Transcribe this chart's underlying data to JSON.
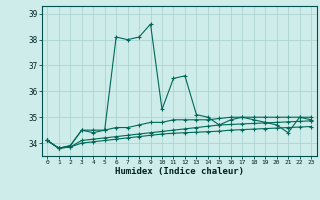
{
  "title": "",
  "xlabel": "Humidex (Indice chaleur)",
  "ylabel": "",
  "xlim": [
    -0.5,
    23.5
  ],
  "ylim": [
    33.5,
    39.3
  ],
  "yticks": [
    34,
    35,
    36,
    37,
    38,
    39
  ],
  "xticks": [
    0,
    1,
    2,
    3,
    4,
    5,
    6,
    7,
    8,
    9,
    10,
    11,
    12,
    13,
    14,
    15,
    16,
    17,
    18,
    19,
    20,
    21,
    22,
    23
  ],
  "bg_color": "#ceecea",
  "grid_color": "#aed4d0",
  "line_color": "#006858",
  "series": [
    [
      34.1,
      33.8,
      33.9,
      34.5,
      34.5,
      34.5,
      38.1,
      38.0,
      38.1,
      38.6,
      35.3,
      36.5,
      36.6,
      35.1,
      35.0,
      34.7,
      34.9,
      35.0,
      34.9,
      34.8,
      34.7,
      34.4,
      35.0,
      34.9
    ],
    [
      34.1,
      33.8,
      33.9,
      34.5,
      34.4,
      34.5,
      34.6,
      34.6,
      34.7,
      34.8,
      34.8,
      34.9,
      34.9,
      34.9,
      34.9,
      34.95,
      35.0,
      35.0,
      35.0,
      35.0,
      35.0,
      35.0,
      35.0,
      35.0
    ],
    [
      34.1,
      33.8,
      33.85,
      34.1,
      34.15,
      34.2,
      34.25,
      34.3,
      34.35,
      34.4,
      34.45,
      34.5,
      34.55,
      34.6,
      34.65,
      34.7,
      34.72,
      34.74,
      34.76,
      34.78,
      34.8,
      34.82,
      34.84,
      34.86
    ],
    [
      34.1,
      33.8,
      33.85,
      34.0,
      34.05,
      34.1,
      34.15,
      34.2,
      34.25,
      34.3,
      34.35,
      34.38,
      34.4,
      34.42,
      34.44,
      34.46,
      34.5,
      34.52,
      34.54,
      34.56,
      34.58,
      34.6,
      34.62,
      34.64
    ]
  ]
}
